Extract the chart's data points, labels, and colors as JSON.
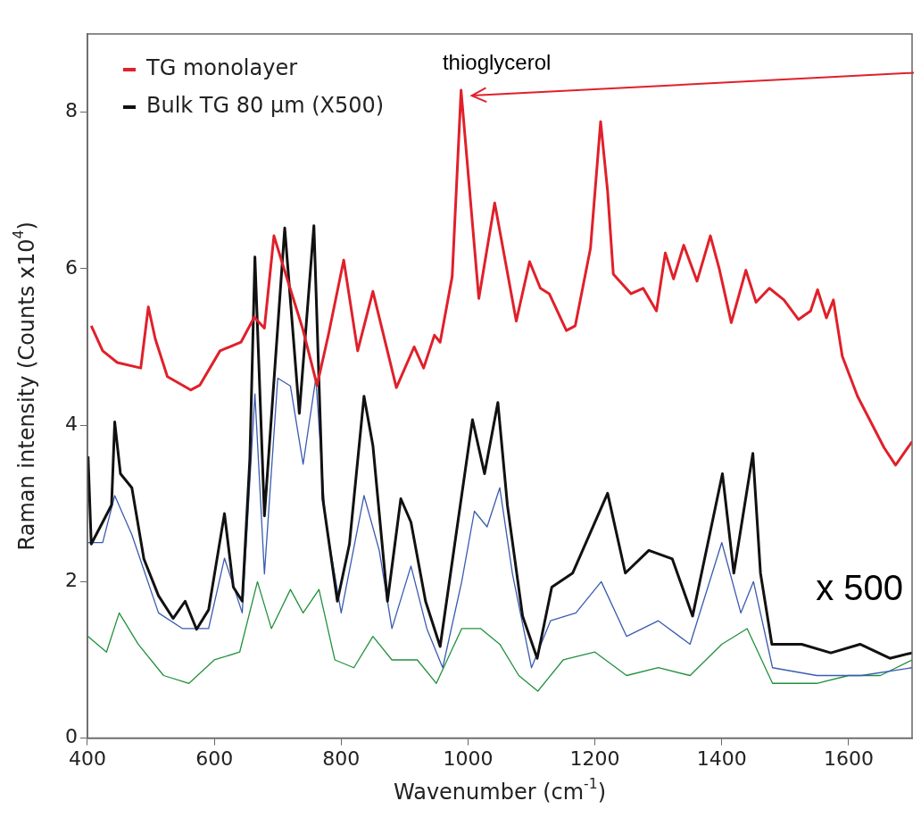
{
  "chart_data": {
    "type": "line",
    "xlabel": "Wavenumber (cm$^{-1}$)",
    "ylabel": "Raman intensity (Counts x10$^{4}$)",
    "xlim": [
      400,
      1700
    ],
    "xticks": [
      400,
      600,
      800,
      1000,
      1200,
      1400,
      1600
    ],
    "ylim": [
      0,
      9
    ],
    "yticks": [
      0,
      2,
      4,
      6,
      8
    ],
    "grid": false,
    "legend": "top left",
    "marker": "none",
    "line_style": "solid",
    "annotations": [
      {
        "text": "thioglycerol",
        "x": 989,
        "y": 8.28
      },
      "x 500"
    ],
    "series": [
      {
        "name": "TG monolayer",
        "color": "#e0202a",
        "x": [
          406,
          424,
          447,
          484,
          496,
          507,
          526,
          563,
          577,
          609,
          642,
          663,
          679,
          694,
          711,
          739,
          762,
          780,
          804,
          826,
          850,
          887,
          915,
          930,
          947,
          956,
          975,
          989,
          1017,
          1042,
          1076,
          1097,
          1114,
          1128,
          1155,
          1169,
          1193,
          1209,
          1220,
          1229,
          1257,
          1276,
          1297,
          1311,
          1324,
          1340,
          1361,
          1382,
          1396,
          1415,
          1438,
          1454,
          1475,
          1498,
          1521,
          1540,
          1551,
          1565,
          1576,
          1590,
          1614,
          1656,
          1674,
          1700
        ],
        "values": [
          5.27,
          4.95,
          4.8,
          4.73,
          5.51,
          5.1,
          4.62,
          4.45,
          4.51,
          4.95,
          5.06,
          5.38,
          5.24,
          6.42,
          5.97,
          5.24,
          4.51,
          5.16,
          6.11,
          4.95,
          5.71,
          4.48,
          5.0,
          4.73,
          5.15,
          5.06,
          5.9,
          8.28,
          5.62,
          6.84,
          5.33,
          6.09,
          5.75,
          5.68,
          5.21,
          5.27,
          6.26,
          7.88,
          6.99,
          5.93,
          5.68,
          5.75,
          5.46,
          6.2,
          5.87,
          6.3,
          5.84,
          6.42,
          6.0,
          5.31,
          5.98,
          5.57,
          5.75,
          5.6,
          5.35,
          5.46,
          5.73,
          5.37,
          5.6,
          4.88,
          4.37,
          3.71,
          3.49,
          3.79
        ]
      },
      {
        "name": "Bulk TG 80 μm (X500)",
        "color": "#111111",
        "x": [
          401,
          406,
          424,
          438,
          443,
          452,
          470,
          489,
          512,
          535,
          554,
          572,
          591,
          616,
          630,
          644,
          656,
          664,
          679,
          711,
          734,
          757,
          771,
          794,
          813,
          836,
          850,
          873,
          894,
          910,
          933,
          956,
          979,
          1007,
          1026,
          1047,
          1062,
          1086,
          1109,
          1132,
          1165,
          1220,
          1248,
          1285,
          1322,
          1354,
          1401,
          1419,
          1449,
          1461,
          1479,
          1526,
          1572,
          1618,
          1665,
          1700
        ],
        "values": [
          3.6,
          2.48,
          2.76,
          2.98,
          4.04,
          3.38,
          3.2,
          2.29,
          1.82,
          1.53,
          1.75,
          1.39,
          1.64,
          2.87,
          1.93,
          1.75,
          3.57,
          6.15,
          2.84,
          6.52,
          4.15,
          6.55,
          3.06,
          1.75,
          2.48,
          4.37,
          3.74,
          1.75,
          3.06,
          2.76,
          1.75,
          1.17,
          2.48,
          4.07,
          3.38,
          4.29,
          2.98,
          1.56,
          1.02,
          1.93,
          2.11,
          3.13,
          2.11,
          2.4,
          2.29,
          1.56,
          3.38,
          2.11,
          3.64,
          2.11,
          1.2,
          1.2,
          1.09,
          1.2,
          1.02,
          1.09
        ]
      },
      {
        "color": "#3a5bb0",
        "x": [
          401,
          424,
          443,
          470,
          512,
          550,
          591,
          616,
          644,
          664,
          679,
          700,
          720,
          740,
          760,
          775,
          800,
          836,
          860,
          880,
          910,
          935,
          960,
          990,
          1010,
          1030,
          1050,
          1070,
          1100,
          1130,
          1170,
          1210,
          1250,
          1300,
          1350,
          1400,
          1430,
          1450,
          1480,
          1550,
          1620,
          1700
        ],
        "values": [
          2.5,
          2.5,
          3.1,
          2.6,
          1.6,
          1.4,
          1.4,
          2.3,
          1.6,
          4.4,
          2.1,
          4.6,
          4.5,
          3.5,
          4.6,
          2.8,
          1.6,
          3.1,
          2.4,
          1.4,
          2.2,
          1.4,
          0.9,
          2.0,
          2.9,
          2.7,
          3.2,
          2.1,
          0.9,
          1.5,
          1.6,
          2.0,
          1.3,
          1.5,
          1.2,
          2.5,
          1.6,
          2.0,
          0.9,
          0.8,
          0.8,
          0.9
        ]
      },
      {
        "color": "#22913c",
        "x": [
          401,
          430,
          450,
          480,
          520,
          560,
          600,
          640,
          668,
          690,
          720,
          740,
          765,
          790,
          820,
          850,
          880,
          920,
          950,
          990,
          1020,
          1050,
          1080,
          1110,
          1150,
          1200,
          1250,
          1300,
          1350,
          1400,
          1440,
          1480,
          1550,
          1600,
          1650,
          1700
        ],
        "values": [
          1.3,
          1.1,
          1.6,
          1.2,
          0.8,
          0.7,
          1.0,
          1.1,
          2.0,
          1.4,
          1.9,
          1.6,
          1.9,
          1.0,
          0.9,
          1.3,
          1.0,
          1.0,
          0.7,
          1.4,
          1.4,
          1.2,
          0.8,
          0.6,
          1.0,
          1.1,
          0.8,
          0.9,
          0.8,
          1.2,
          1.4,
          0.7,
          0.7,
          0.8,
          0.8,
          1.0
        ]
      }
    ]
  }
}
